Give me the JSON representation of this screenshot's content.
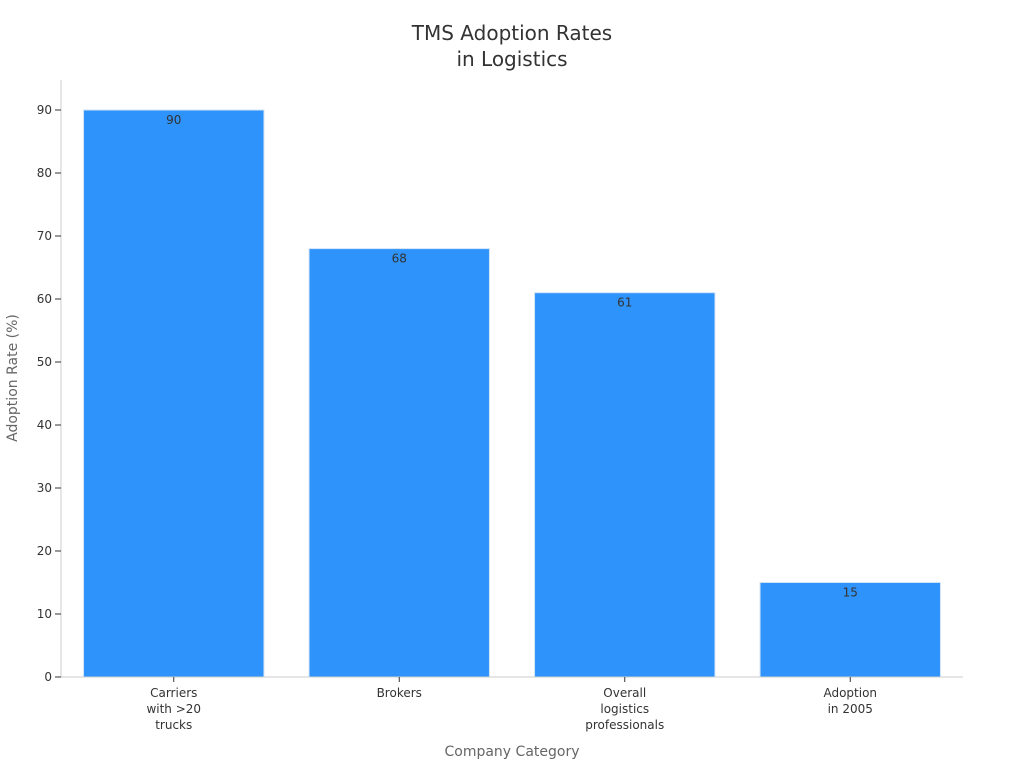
{
  "chart_data": {
    "type": "bar",
    "title": [
      "TMS Adoption Rates",
      "in Logistics"
    ],
    "xlabel": "Company Category",
    "ylabel": "Adoption Rate (%)",
    "categories": [
      [
        "Carriers",
        "with >20",
        "trucks"
      ],
      [
        "Brokers"
      ],
      [
        "Overall",
        "logistics",
        "professionals"
      ],
      [
        "Adoption",
        "in 2005"
      ]
    ],
    "values": [
      90,
      68,
      61,
      15
    ],
    "data_labels": [
      "90",
      "68",
      "61",
      "15"
    ],
    "ylim": [
      0,
      90
    ],
    "yticks": [
      "0",
      "10",
      "20",
      "30",
      "40",
      "50",
      "60",
      "70",
      "80",
      "90"
    ],
    "grid": false,
    "legend": "none",
    "bar_color": "#2e93fa"
  }
}
